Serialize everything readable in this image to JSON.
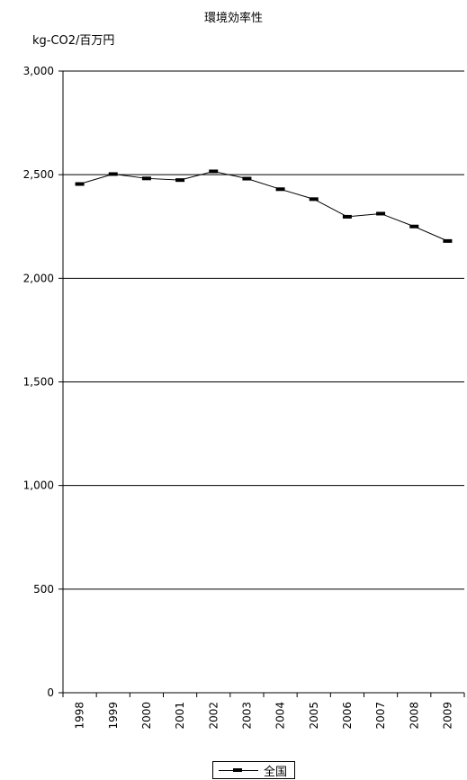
{
  "chart_data": {
    "type": "line",
    "title": "環境効率性",
    "ylabel": "kg-CO2/百万円",
    "xlabel": "",
    "categories": [
      "1998",
      "1999",
      "2000",
      "2001",
      "2002",
      "2003",
      "2004",
      "2005",
      "2006",
      "2007",
      "2008",
      "2009"
    ],
    "series": [
      {
        "name": "全国",
        "values": [
          2455,
          2503,
          2482,
          2474,
          2516,
          2481,
          2430,
          2382,
          2297,
          2312,
          2250,
          2180
        ]
      }
    ],
    "ylim": [
      0,
      3000
    ],
    "yticks": [
      0,
      500,
      1000,
      1500,
      2000,
      2500,
      3000
    ],
    "ytick_labels": [
      "0",
      "500",
      "1,000",
      "1,500",
      "2,000",
      "2,500",
      "3,000"
    ],
    "grid": true,
    "legend_position": "bottom"
  }
}
